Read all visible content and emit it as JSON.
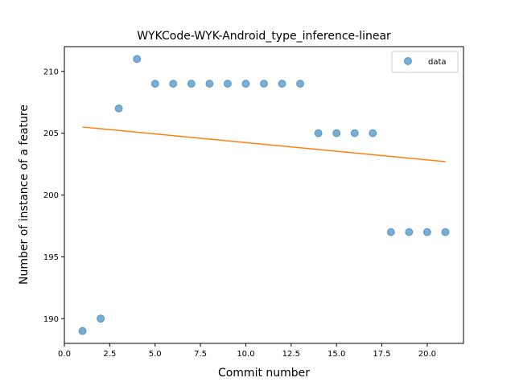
{
  "chart_data": {
    "type": "scatter",
    "title": "WYKCode-WYK-Android_type_inference-linear",
    "xlabel": "Commit number",
    "ylabel": "Number of instance of a feature",
    "xlim": [
      0.0,
      22.0
    ],
    "ylim": [
      188.0,
      212.0
    ],
    "x_ticks": [
      0.0,
      2.5,
      5.0,
      7.5,
      10.0,
      12.5,
      15.0,
      17.5,
      20.0
    ],
    "x_tick_labels": [
      "0.0",
      "2.5",
      "5.0",
      "7.5",
      "10.0",
      "12.5",
      "15.0",
      "17.5",
      "20.0"
    ],
    "y_ticks": [
      190,
      195,
      200,
      205,
      210
    ],
    "y_tick_labels": [
      "190",
      "195",
      "200",
      "205",
      "210"
    ],
    "grid": false,
    "legend_position": "top-right",
    "series": [
      {
        "name": "data",
        "kind": "scatter",
        "color": "#1f77b4",
        "x": [
          1,
          2,
          3,
          4,
          5,
          6,
          7,
          8,
          9,
          10,
          11,
          12,
          13,
          14,
          15,
          16,
          17,
          18,
          19,
          20,
          21
        ],
        "y": [
          189,
          190,
          207,
          211,
          209,
          209,
          209,
          209,
          209,
          209,
          209,
          209,
          209,
          205,
          205,
          205,
          205,
          197,
          197,
          197,
          197
        ]
      },
      {
        "kind": "line",
        "color": "#ff7f0e",
        "x": [
          1,
          21
        ],
        "y": [
          205.5,
          202.7
        ]
      }
    ]
  }
}
